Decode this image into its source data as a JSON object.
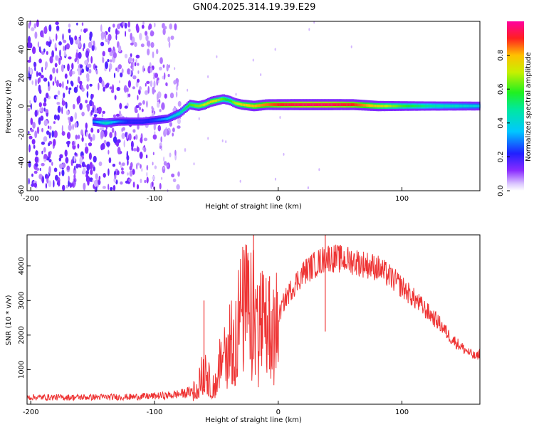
{
  "title": "GN04.2025.314.19.39.E29",
  "chart_data": [
    {
      "type": "heatmap",
      "xlabel": "Height of straight line (km)",
      "ylabel": "Frequency (Hz)",
      "xlim": [
        -203,
        163
      ],
      "ylim": [
        -60,
        60
      ],
      "x_ticks": [
        "-200",
        "-100",
        "0",
        "100"
      ],
      "x_tick_values": [
        -200,
        -100,
        0,
        100
      ],
      "y_ticks": [
        "60",
        "40",
        "20",
        "0",
        "-20",
        "-40",
        "-60"
      ],
      "y_tick_values": [
        60,
        40,
        20,
        0,
        -20,
        -40,
        -60
      ],
      "colorbar": {
        "label": "Normalized spectral amplitude",
        "range": [
          0,
          1
        ],
        "ticks": [
          "0.0",
          "0.2",
          "0.4",
          "0.6",
          "0.8"
        ],
        "tick_values": [
          0,
          0.2,
          0.4,
          0.6,
          0.8
        ]
      },
      "noise_region_x": [
        -203,
        -75
      ],
      "ridge": {
        "x": [
          -150,
          -140,
          -130,
          -120,
          -110,
          -100,
          -90,
          -80,
          -72,
          -65,
          -60,
          -55,
          -50,
          -45,
          -40,
          -35,
          -30,
          -20,
          -10,
          0,
          20,
          40,
          60,
          80,
          100,
          120,
          140,
          163
        ],
        "frequency": [
          -11,
          -12,
          -11,
          -11,
          -11,
          -10,
          -9,
          -5,
          1,
          0,
          1,
          3,
          4,
          5,
          4,
          2,
          1,
          0,
          1,
          1,
          1,
          1,
          1,
          0,
          0,
          0,
          0,
          0
        ],
        "amplitude": [
          0.3,
          0.45,
          0.3,
          0.2,
          0.2,
          0.25,
          0.35,
          0.45,
          0.6,
          0.65,
          0.7,
          0.75,
          0.7,
          0.6,
          0.55,
          0.7,
          0.75,
          0.8,
          0.85,
          0.9,
          0.95,
          0.95,
          0.9,
          0.75,
          0.6,
          0.5,
          0.45,
          0.4
        ]
      }
    },
    {
      "type": "line",
      "xlabel": "Height of straight line (km)",
      "ylabel": "SNR (10 * v/v)",
      "xlim": [
        -203,
        163
      ],
      "ylim": [
        0,
        4900
      ],
      "x_ticks": [
        "-200",
        "-100",
        "0",
        "100"
      ],
      "x_tick_values": [
        -200,
        -100,
        0,
        100
      ],
      "y_ticks": [
        "1000",
        "2000",
        "3000",
        "4000"
      ],
      "y_tick_values": [
        1000,
        2000,
        3000,
        4000
      ],
      "color": "#ee3333",
      "envelope": {
        "x": [
          -203,
          -160,
          -120,
          -90,
          -75,
          -68,
          -62,
          -58,
          -55,
          -50,
          -45,
          -40,
          -35,
          -30,
          -25,
          -20,
          -15,
          -10,
          -5,
          0,
          5,
          10,
          20,
          30,
          40,
          50,
          60,
          70,
          80,
          90,
          100,
          110,
          120,
          130,
          140,
          150,
          160,
          163
        ],
        "y": [
          200,
          200,
          210,
          250,
          320,
          400,
          800,
          1100,
          500,
          600,
          1500,
          1800,
          2100,
          2600,
          2800,
          2600,
          2400,
          2200,
          1900,
          2500,
          3000,
          3300,
          3800,
          4050,
          4250,
          4200,
          4150,
          4050,
          3950,
          3700,
          3400,
          3050,
          2700,
          2350,
          1900,
          1600,
          1350,
          1500
        ]
      },
      "spikes": {
        "x": [
          -60,
          -20,
          -7,
          38
        ],
        "y": [
          3000,
          4900,
          3700,
          4900
        ]
      }
    }
  ]
}
